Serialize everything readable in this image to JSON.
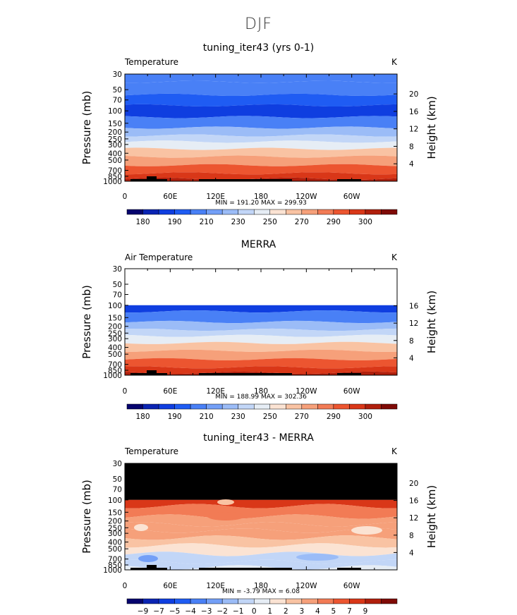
{
  "page": {
    "season": "DJF",
    "colors": {
      "temp_scale": [
        "#06046e",
        "#0a24b3",
        "#0f3ee0",
        "#1f5cf3",
        "#4980f6",
        "#739ff7",
        "#9bbcf7",
        "#c2d6f7",
        "#e6edf5",
        "#fbe3d3",
        "#f9c3a3",
        "#f6a07a",
        "#f27b55",
        "#ec5530",
        "#d93718",
        "#b01f0c",
        "#7f0a06"
      ],
      "diff_scale": [
        "#06046e",
        "#0a24b3",
        "#0f3ee0",
        "#1f5cf3",
        "#4980f6",
        "#739ff7",
        "#9bbcf7",
        "#c2d6f7",
        "#e6edf5",
        "#fbe3d3",
        "#f9c3a3",
        "#f6a07a",
        "#f27b55",
        "#ec5530",
        "#d93718",
        "#b01f0c",
        "#7f0a06"
      ],
      "missing": "#000000"
    }
  },
  "panels": [
    {
      "title": "tuning_iter43 (yrs 0-1)",
      "var_label": "Temperature",
      "units": "K",
      "ylabel_left": "Pressure  (mb)",
      "ylabel_right": "Height  (km)",
      "minmax": "MIN = 191.20   MAX = 299.93"
    },
    {
      "title": "MERRA",
      "var_label": "Air Temperature",
      "units": "K",
      "ylabel_left": "Pressure  (mb)",
      "ylabel_right": "Height  (km)",
      "minmax": "MIN = 188.99   MAX = 302.36"
    },
    {
      "title": "tuning_iter43 - MERRA",
      "var_label": "Temperature",
      "units": "K",
      "ylabel_left": "Pressure  (mb)",
      "ylabel_right": "Height  (km)",
      "minmax": "MIN =  -3.79   MAX =    6.08"
    }
  ],
  "chart_data": [
    {
      "type": "heatmap",
      "title": "tuning_iter43 (yrs 0-1)",
      "subtitle": "Temperature",
      "units": "K",
      "xlabel": "",
      "ylabel": "Pressure (mb)",
      "y2label": "Height (km)",
      "x_ticks": [
        "0",
        "60E",
        "120E",
        "180",
        "120W",
        "60W"
      ],
      "y_ticks": [
        "30",
        "50",
        "70",
        "100",
        "150",
        "200",
        "250",
        "300",
        "400",
        "500",
        "700",
        "850",
        "1000"
      ],
      "y2_ticks": [
        "20",
        "16",
        "12",
        "8",
        "4"
      ],
      "colorbar_labels": [
        "180",
        "190",
        "210",
        "230",
        "250",
        "270",
        "290",
        "300"
      ],
      "min": 191.2,
      "max": 299.93,
      "profile": [
        {
          "p": 30,
          "level": 4
        },
        {
          "p": 50,
          "level": 4
        },
        {
          "p": 70,
          "level": 3
        },
        {
          "p": 100,
          "level": 2
        },
        {
          "p": 150,
          "level": 4
        },
        {
          "p": 200,
          "level": 6
        },
        {
          "p": 250,
          "level": 7
        },
        {
          "p": 300,
          "level": 8
        },
        {
          "p": 400,
          "level": 10
        },
        {
          "p": 500,
          "level": 11
        },
        {
          "p": 700,
          "level": 13
        },
        {
          "p": 850,
          "level": 14
        },
        {
          "p": 1000,
          "level": 15
        }
      ]
    },
    {
      "type": "heatmap",
      "title": "MERRA",
      "subtitle": "Air Temperature",
      "units": "K",
      "xlabel": "",
      "ylabel": "Pressure (mb)",
      "y2label": "Height (km)",
      "x_ticks": [
        "0",
        "60E",
        "120E",
        "180",
        "120W",
        "60W"
      ],
      "y_ticks": [
        "30",
        "50",
        "70",
        "100",
        "150",
        "200",
        "250",
        "300",
        "400",
        "500",
        "700",
        "850",
        "1000"
      ],
      "y2_ticks": [
        "16",
        "12",
        "8",
        "4"
      ],
      "colorbar_labels": [
        "180",
        "190",
        "210",
        "230",
        "250",
        "270",
        "290",
        "300"
      ],
      "min": 188.99,
      "max": 302.36,
      "top_of_data_mb": 100,
      "profile": [
        {
          "p": 100,
          "level": 2
        },
        {
          "p": 150,
          "level": 4
        },
        {
          "p": 200,
          "level": 6
        },
        {
          "p": 250,
          "level": 7
        },
        {
          "p": 300,
          "level": 8
        },
        {
          "p": 400,
          "level": 10
        },
        {
          "p": 500,
          "level": 11
        },
        {
          "p": 700,
          "level": 13
        },
        {
          "p": 850,
          "level": 14
        },
        {
          "p": 1000,
          "level": 15
        }
      ]
    },
    {
      "type": "heatmap",
      "title": "tuning_iter43 - MERRA",
      "subtitle": "Temperature",
      "units": "K",
      "xlabel": "",
      "ylabel": "Pressure (mb)",
      "y2label": "Height (km)",
      "x_ticks": [
        "0",
        "60E",
        "120E",
        "180",
        "120W",
        "60W"
      ],
      "y_ticks": [
        "30",
        "50",
        "70",
        "100",
        "150",
        "200",
        "250",
        "300",
        "400",
        "500",
        "700",
        "850",
        "1000"
      ],
      "y2_ticks": [
        "20",
        "16",
        "12",
        "8",
        "4"
      ],
      "colorbar_labels": [
        "−9",
        "−7",
        "−5",
        "−4",
        "−3",
        "−2",
        "−1",
        "0",
        "1",
        "2",
        "3",
        "4",
        "5",
        "7",
        "9"
      ],
      "min": -3.79,
      "max": 6.08,
      "missing_above_mb": 100,
      "profile": [
        {
          "p": 100,
          "level": 14
        },
        {
          "p": 150,
          "level": 12
        },
        {
          "p": 200,
          "level": 11
        },
        {
          "p": 250,
          "level": 11
        },
        {
          "p": 300,
          "level": 11
        },
        {
          "p": 400,
          "level": 10
        },
        {
          "p": 500,
          "level": 9
        },
        {
          "p": 700,
          "level": 7
        },
        {
          "p": 850,
          "level": 7
        },
        {
          "p": 1000,
          "level": 8
        }
      ]
    }
  ]
}
